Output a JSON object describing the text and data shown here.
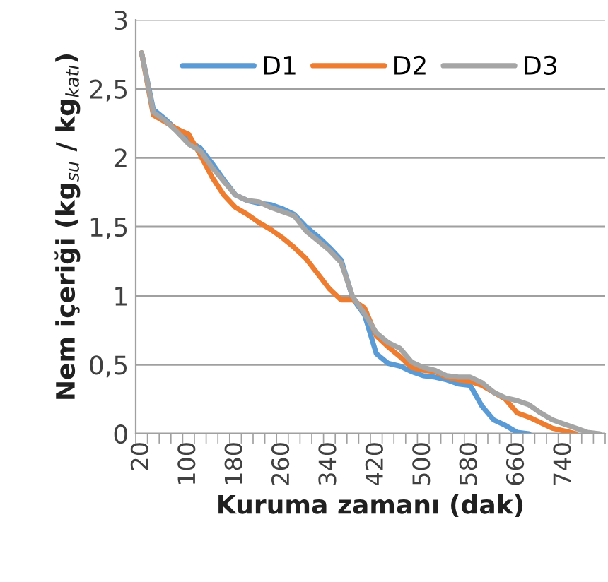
{
  "chart_data": {
    "type": "line",
    "xlabel": "Kuruma zamanı (dak)",
    "ylabel": "Nem içeriği (kg$_{su}$ / kg$_{katı}$)",
    "categories": [
      "20",
      null,
      null,
      null,
      "100",
      null,
      null,
      null,
      "180",
      null,
      null,
      null,
      "260",
      null,
      null,
      null,
      "340",
      null,
      null,
      null,
      "420",
      null,
      null,
      null,
      "500",
      null,
      null,
      null,
      "580",
      null,
      null,
      null,
      "660",
      null,
      null,
      null,
      "740",
      null,
      null,
      null
    ],
    "series": [
      {
        "name": "D1",
        "color": "#5b9bd5",
        "values": [
          2.76,
          2.35,
          2.28,
          2.2,
          2.12,
          2.07,
          1.96,
          1.84,
          1.73,
          1.69,
          1.67,
          1.66,
          1.63,
          1.59,
          1.5,
          1.43,
          1.35,
          1.26,
          0.98,
          0.86,
          0.58,
          0.51,
          0.49,
          0.45,
          0.42,
          0.41,
          0.39,
          0.36,
          0.35,
          0.2,
          0.1,
          0.06,
          0.01,
          0,
          null,
          null,
          null,
          null,
          null,
          null
        ]
      },
      {
        "name": "D2",
        "color": "#ed7d31",
        "values": [
          2.76,
          2.31,
          2.26,
          2.21,
          2.17,
          2.02,
          1.86,
          1.73,
          1.64,
          1.59,
          1.53,
          1.48,
          1.42,
          1.35,
          1.27,
          1.16,
          1.05,
          0.97,
          0.97,
          0.91,
          0.71,
          0.63,
          0.56,
          0.48,
          0.46,
          0.45,
          0.41,
          0.39,
          0.38,
          0.35,
          0.3,
          0.25,
          0.15,
          0.12,
          0.08,
          0.04,
          0.02,
          0,
          null,
          null
        ]
      },
      {
        "name": "D3",
        "color": "#a5a5a5",
        "values": [
          2.76,
          2.33,
          2.27,
          2.19,
          2.1,
          2.05,
          1.93,
          1.83,
          1.73,
          1.69,
          1.68,
          1.64,
          1.61,
          1.58,
          1.47,
          1.4,
          1.33,
          1.24,
          0.99,
          0.87,
          0.73,
          0.66,
          0.62,
          0.52,
          0.48,
          0.46,
          0.42,
          0.41,
          0.41,
          0.37,
          0.3,
          0.26,
          0.24,
          0.21,
          0.15,
          0.1,
          0.07,
          0.04,
          0.01,
          0
        ]
      }
    ],
    "ylim": [
      0,
      3
    ],
    "yticks": [
      0,
      {
        "value": 0.5,
        "label": "0,5"
      },
      1,
      {
        "value": 1.5,
        "label": "1,5"
      },
      2,
      {
        "value": 2.5,
        "label": "2,5"
      },
      3
    ],
    "grid": "y",
    "legend": "top",
    "marker": "none",
    "line_style": "solid"
  }
}
